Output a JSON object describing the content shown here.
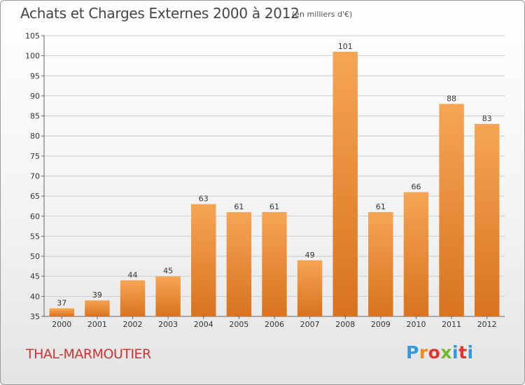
{
  "header": {
    "title": "Achats et Charges Externes 2000 à 2012",
    "subtitle": "(en milliers d'€)"
  },
  "footer": {
    "commune": "THAL-MARMOUTIER",
    "logo_text": "Proxiti",
    "logo_colors": [
      "#3399dd",
      "#f08a1c",
      "#e2352f",
      "#74b72e",
      "#3399dd",
      "#e2352f"
    ]
  },
  "chart_data": {
    "type": "bar",
    "title": "Achats et Charges Externes 2000 à 2012",
    "subtitle": "(en milliers d'€)",
    "xlabel": "",
    "ylabel": "",
    "categories": [
      "2000",
      "2001",
      "2002",
      "2003",
      "2004",
      "2005",
      "2006",
      "2007",
      "2008",
      "2009",
      "2010",
      "2011",
      "2012"
    ],
    "values": [
      37,
      39,
      44,
      45,
      63,
      61,
      61,
      49,
      101,
      61,
      66,
      88,
      83
    ],
    "ylim": [
      35,
      105
    ],
    "yticks": [
      35,
      40,
      45,
      50,
      55,
      60,
      65,
      70,
      75,
      80,
      85,
      90,
      95,
      100,
      105
    ],
    "grid": true,
    "legend": "none",
    "bar_color_top": "#f6a555",
    "bar_color_bottom": "#d8731f",
    "grid_color": "#cccccc"
  }
}
